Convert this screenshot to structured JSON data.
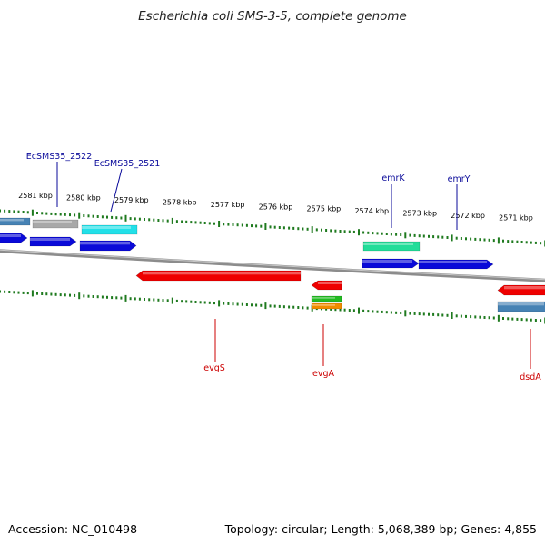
{
  "title": "Escherichia coli SMS-3-5, complete genome",
  "footer": {
    "accession": "Accession: NC_010498",
    "summary": "Topology: circular; Length: 5,068,389 bp; Genes: 4,855"
  },
  "colors": {
    "backbone": "#8c8c8c",
    "tick": "#1f7a1f",
    "label_top": "#0a0a9a",
    "label_bottom": "#cc0000",
    "blue": "#0a0ad8",
    "red": "#ee0000",
    "cyan": "#22e0e8",
    "gray": "#a8a8a8",
    "steel": "#4682b4",
    "mint": "#22dd99",
    "green": "#22bb22",
    "orange": "#f08c00"
  },
  "scale": {
    "labels": [
      "2581 kbp",
      "2580 kbp",
      "2579 kbp",
      "2578 kbp",
      "2577 kbp",
      "2576 kbp",
      "2575 kbp",
      "2574 kbp",
      "2573 kbp",
      "2572 kbp",
      "2571 kbp"
    ]
  },
  "gene_labels": {
    "top": [
      "EcSMS35_2522",
      "EcSMS35_2521",
      "emrK",
      "emrY"
    ],
    "bottom": [
      "evgS",
      "evgA",
      "dsdA"
    ]
  }
}
